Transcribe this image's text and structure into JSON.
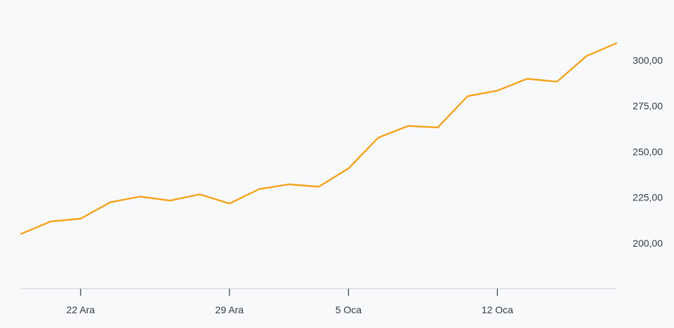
{
  "chart_data": {
    "type": "line",
    "title": "",
    "xlabel": "",
    "ylabel": "",
    "x_tick_labels": [
      "22 Ara",
      "29 Ara",
      "5 Oca",
      "12 Oca"
    ],
    "x_tick_index": [
      2,
      7,
      11,
      16
    ],
    "y_tick_labels": [
      "200,00",
      "225,00",
      "250,00",
      "275,00",
      "300,00"
    ],
    "y_tick_values": [
      200,
      225,
      250,
      275,
      300
    ],
    "ylim": [
      175,
      316
    ],
    "grid": false,
    "series": [
      {
        "color": "#f5a21b",
        "values": [
          205.0,
          211.8,
          213.3,
          222.3,
          225.4,
          223.2,
          226.6,
          221.6,
          229.5,
          232.1,
          230.8,
          240.8,
          257.6,
          264.0,
          263.2,
          280.3,
          283.3,
          289.8,
          288.2,
          302.3,
          309.2
        ]
      }
    ]
  }
}
